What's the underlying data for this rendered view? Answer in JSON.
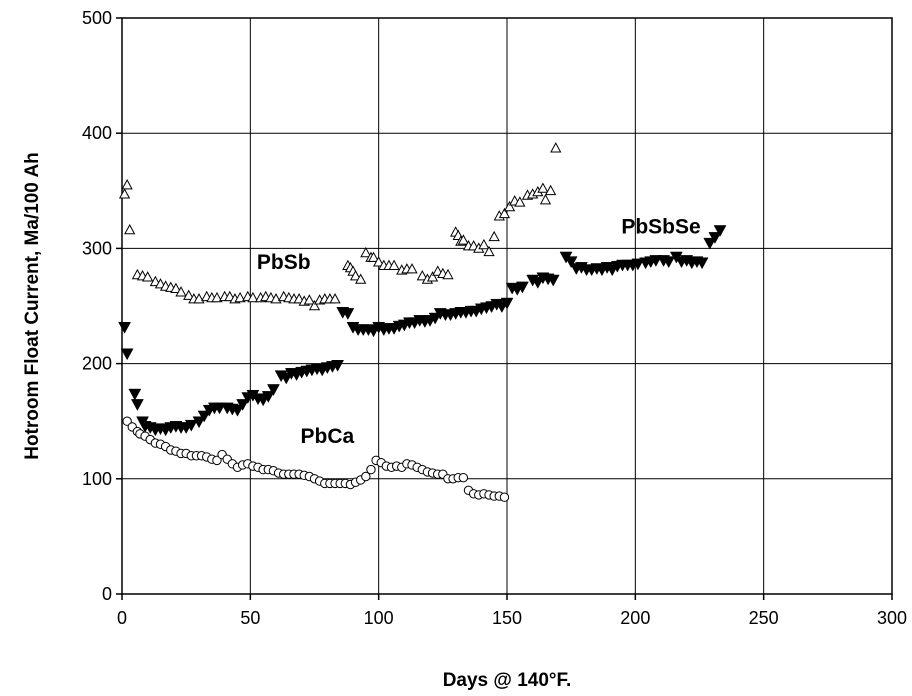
{
  "chart_data": {
    "type": "scatter",
    "title": "",
    "xlabel": "Days @ 140°F.",
    "ylabel": "Hotroom Float Current, Ma/100 Ah",
    "xlim": [
      0,
      300
    ],
    "ylim": [
      0,
      500
    ],
    "xticks": [
      0,
      50,
      100,
      150,
      200,
      250,
      300
    ],
    "yticks": [
      0,
      100,
      200,
      300,
      400,
      500
    ],
    "grid": true,
    "legend": "none",
    "series": [
      {
        "name": "PbSb",
        "marker": "open-triangle-up",
        "label_at": [
          63,
          282
        ],
        "points": [
          [
            1,
            347
          ],
          [
            2,
            355
          ],
          [
            3,
            316
          ],
          [
            6,
            277
          ],
          [
            8,
            276
          ],
          [
            10,
            275
          ],
          [
            13,
            271
          ],
          [
            15,
            269
          ],
          [
            17,
            267
          ],
          [
            19,
            266
          ],
          [
            21,
            265
          ],
          [
            23,
            262
          ],
          [
            26,
            259
          ],
          [
            28,
            256
          ],
          [
            30,
            256
          ],
          [
            33,
            258
          ],
          [
            35,
            257
          ],
          [
            37,
            257
          ],
          [
            40,
            258
          ],
          [
            42,
            258
          ],
          [
            44,
            256
          ],
          [
            46,
            257
          ],
          [
            49,
            258
          ],
          [
            51,
            257
          ],
          [
            54,
            257
          ],
          [
            56,
            258
          ],
          [
            58,
            257
          ],
          [
            60,
            256
          ],
          [
            63,
            258
          ],
          [
            65,
            257
          ],
          [
            67,
            256
          ],
          [
            69,
            256
          ],
          [
            71,
            254
          ],
          [
            73,
            255
          ],
          [
            75,
            250
          ],
          [
            77,
            255
          ],
          [
            79,
            256
          ],
          [
            81,
            256
          ],
          [
            83,
            256
          ],
          [
            88,
            285
          ],
          [
            89,
            283
          ],
          [
            90,
            280
          ],
          [
            91,
            276
          ],
          [
            93,
            273
          ],
          [
            95,
            296
          ],
          [
            97,
            292
          ],
          [
            98,
            292
          ],
          [
            100,
            288
          ],
          [
            102,
            285
          ],
          [
            104,
            285
          ],
          [
            106,
            285
          ],
          [
            109,
            281
          ],
          [
            111,
            282
          ],
          [
            113,
            282
          ],
          [
            117,
            276
          ],
          [
            119,
            273
          ],
          [
            121,
            275
          ],
          [
            123,
            280
          ],
          [
            125,
            278
          ],
          [
            127,
            277
          ],
          [
            130,
            314
          ],
          [
            131,
            311
          ],
          [
            132,
            306
          ],
          [
            133,
            307
          ],
          [
            135,
            302
          ],
          [
            137,
            302
          ],
          [
            139,
            300
          ],
          [
            141,
            303
          ],
          [
            143,
            297
          ],
          [
            145,
            310
          ],
          [
            147,
            328
          ],
          [
            149,
            330
          ],
          [
            151,
            336
          ],
          [
            153,
            341
          ],
          [
            155,
            340
          ],
          [
            158,
            346
          ],
          [
            160,
            347
          ],
          [
            162,
            349
          ],
          [
            164,
            352
          ],
          [
            165,
            342
          ],
          [
            167,
            350
          ],
          [
            169,
            387
          ]
        ]
      },
      {
        "name": "PbSbSe",
        "marker": "filled-triangle-down",
        "label_at": [
          210,
          313
        ],
        "points": [
          [
            1,
            232
          ],
          [
            2,
            209
          ],
          [
            5,
            174
          ],
          [
            6,
            165
          ],
          [
            8,
            150
          ],
          [
            9,
            146
          ],
          [
            11,
            145
          ],
          [
            13,
            143
          ],
          [
            15,
            144
          ],
          [
            17,
            143
          ],
          [
            19,
            145
          ],
          [
            21,
            146
          ],
          [
            23,
            145
          ],
          [
            25,
            145
          ],
          [
            27,
            147
          ],
          [
            30,
            150
          ],
          [
            32,
            155
          ],
          [
            34,
            160
          ],
          [
            36,
            162
          ],
          [
            38,
            162
          ],
          [
            41,
            162
          ],
          [
            43,
            161
          ],
          [
            45,
            160
          ],
          [
            47,
            165
          ],
          [
            49,
            171
          ],
          [
            51,
            173
          ],
          [
            53,
            170
          ],
          [
            55,
            169
          ],
          [
            57,
            172
          ],
          [
            59,
            178
          ],
          [
            62,
            190
          ],
          [
            64,
            188
          ],
          [
            66,
            192
          ],
          [
            68,
            191
          ],
          [
            70,
            193
          ],
          [
            72,
            194
          ],
          [
            74,
            195
          ],
          [
            76,
            196
          ],
          [
            78,
            195
          ],
          [
            80,
            197
          ],
          [
            82,
            198
          ],
          [
            84,
            199
          ],
          [
            86,
            245
          ],
          [
            88,
            244
          ],
          [
            90,
            232
          ],
          [
            92,
            230
          ],
          [
            94,
            230
          ],
          [
            96,
            230
          ],
          [
            98,
            229
          ],
          [
            100,
            232
          ],
          [
            102,
            230
          ],
          [
            104,
            231
          ],
          [
            106,
            231
          ],
          [
            108,
            233
          ],
          [
            110,
            234
          ],
          [
            112,
            236
          ],
          [
            114,
            236
          ],
          [
            116,
            238
          ],
          [
            118,
            237
          ],
          [
            120,
            238
          ],
          [
            122,
            240
          ],
          [
            124,
            244
          ],
          [
            126,
            243
          ],
          [
            128,
            243
          ],
          [
            130,
            244
          ],
          [
            132,
            245
          ],
          [
            134,
            245
          ],
          [
            136,
            246
          ],
          [
            138,
            246
          ],
          [
            140,
            248
          ],
          [
            142,
            249
          ],
          [
            144,
            250
          ],
          [
            146,
            252
          ],
          [
            148,
            250
          ],
          [
            150,
            253
          ],
          [
            152,
            266
          ],
          [
            154,
            265
          ],
          [
            156,
            267
          ],
          [
            160,
            273
          ],
          [
            162,
            271
          ],
          [
            164,
            275
          ],
          [
            166,
            274
          ],
          [
            168,
            273
          ],
          [
            173,
            293
          ],
          [
            175,
            289
          ],
          [
            177,
            283
          ],
          [
            179,
            284
          ],
          [
            181,
            282
          ],
          [
            183,
            282
          ],
          [
            185,
            283
          ],
          [
            187,
            282
          ],
          [
            189,
            284
          ],
          [
            191,
            282
          ],
          [
            193,
            285
          ],
          [
            195,
            286
          ],
          [
            197,
            286
          ],
          [
            199,
            286
          ],
          [
            201,
            287
          ],
          [
            204,
            288
          ],
          [
            206,
            289
          ],
          [
            208,
            290
          ],
          [
            211,
            290
          ],
          [
            213,
            289
          ],
          [
            216,
            293
          ],
          [
            218,
            289
          ],
          [
            220,
            290
          ],
          [
            222,
            288
          ],
          [
            224,
            289
          ],
          [
            226,
            288
          ],
          [
            229,
            305
          ],
          [
            231,
            310
          ],
          [
            233,
            316
          ]
        ]
      },
      {
        "name": "PbCa",
        "marker": "open-circle",
        "label_at": [
          80,
          131
        ],
        "points": [
          [
            2,
            150
          ],
          [
            4,
            145
          ],
          [
            6,
            141
          ],
          [
            7,
            139
          ],
          [
            9,
            137
          ],
          [
            11,
            134
          ],
          [
            13,
            131
          ],
          [
            15,
            130
          ],
          [
            17,
            128
          ],
          [
            19,
            125
          ],
          [
            21,
            124
          ],
          [
            23,
            122
          ],
          [
            25,
            122
          ],
          [
            27,
            120
          ],
          [
            29,
            120
          ],
          [
            31,
            120
          ],
          [
            33,
            119
          ],
          [
            35,
            117
          ],
          [
            37,
            116
          ],
          [
            39,
            121
          ],
          [
            41,
            117
          ],
          [
            43,
            113
          ],
          [
            45,
            110
          ],
          [
            47,
            112
          ],
          [
            49,
            113
          ],
          [
            51,
            111
          ],
          [
            53,
            110
          ],
          [
            55,
            108
          ],
          [
            57,
            108
          ],
          [
            59,
            107
          ],
          [
            61,
            105
          ],
          [
            63,
            104
          ],
          [
            65,
            104
          ],
          [
            67,
            104
          ],
          [
            69,
            104
          ],
          [
            71,
            103
          ],
          [
            73,
            102
          ],
          [
            75,
            100
          ],
          [
            77,
            98
          ],
          [
            79,
            96
          ],
          [
            81,
            96
          ],
          [
            83,
            96
          ],
          [
            85,
            96
          ],
          [
            87,
            96
          ],
          [
            89,
            95
          ],
          [
            91,
            97
          ],
          [
            93,
            99
          ],
          [
            95,
            102
          ],
          [
            97,
            108
          ],
          [
            99,
            116
          ],
          [
            101,
            114
          ],
          [
            103,
            111
          ],
          [
            105,
            110
          ],
          [
            107,
            111
          ],
          [
            109,
            110
          ],
          [
            111,
            113
          ],
          [
            113,
            112
          ],
          [
            115,
            110
          ],
          [
            117,
            108
          ],
          [
            119,
            106
          ],
          [
            121,
            105
          ],
          [
            123,
            104
          ],
          [
            125,
            104
          ],
          [
            127,
            100
          ],
          [
            129,
            100
          ],
          [
            131,
            101
          ],
          [
            133,
            101
          ],
          [
            135,
            90
          ],
          [
            137,
            87
          ],
          [
            139,
            86
          ],
          [
            141,
            87
          ],
          [
            143,
            86
          ],
          [
            145,
            85
          ],
          [
            147,
            85
          ],
          [
            149,
            84
          ]
        ]
      }
    ]
  }
}
